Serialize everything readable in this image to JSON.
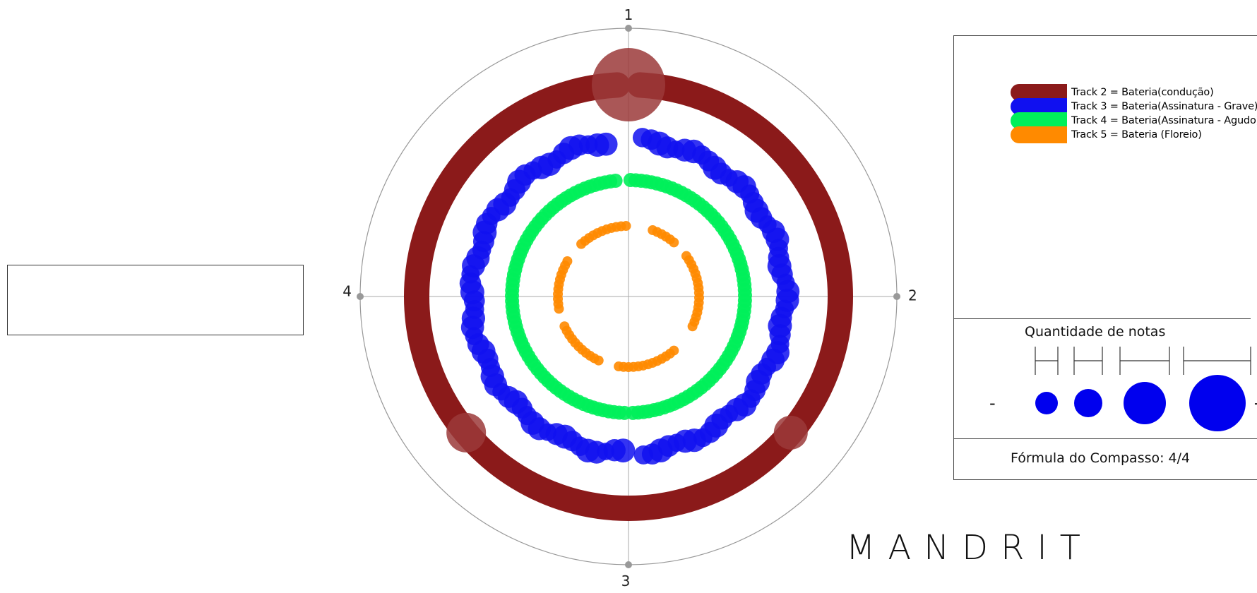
{
  "polar": {
    "axis_labels": [
      "1",
      "2",
      "3",
      "4"
    ]
  },
  "legend": {
    "items": [
      {
        "label": "Track 2 = Bateria(condução)",
        "color": "#8b1a1a"
      },
      {
        "label": "Track 3 = Bateria(Assinatura - Grave)",
        "color": "#1010f0"
      },
      {
        "label": "Track 4 = Bateria(Assinatura - Agudo)",
        "color": "#00f05a"
      },
      {
        "label": "Track 5 = Bateria (Floreio)",
        "color": "#ff8a00"
      }
    ],
    "quantity_title": "Quantidade de notas",
    "minus": "-",
    "plus": "+",
    "formula": "Fórmula do Compasso: 4/4"
  },
  "brand": "MANDRIT",
  "colors": {
    "track2": "#8b1a1a",
    "track2_marker": "#9b3a3a",
    "track3": "#1010f0",
    "track4": "#00f05a",
    "track5": "#ff8a00",
    "axis": "#888888"
  }
}
